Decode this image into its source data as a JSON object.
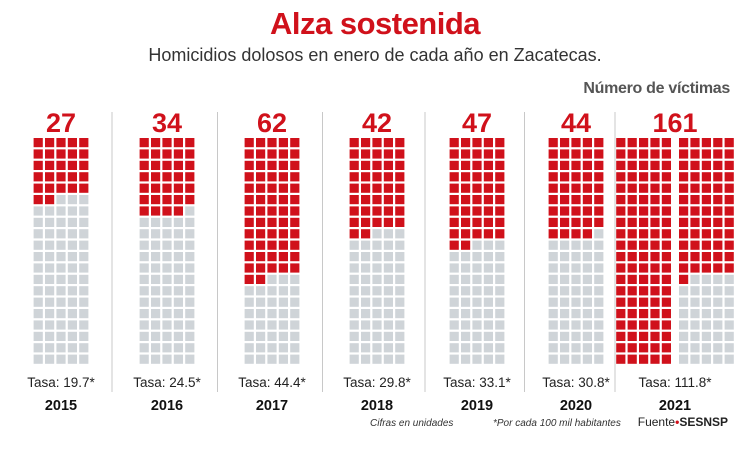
{
  "header": {
    "title": "Alza sostenida",
    "subtitle": "Homicidios dolosos en enero de cada año en Zacatecas.",
    "units_label": "Número de víctimas"
  },
  "chart_data": {
    "type": "waffle",
    "title": "Alza sostenida",
    "subtitle": "Homicidios dolosos en enero de cada año en Zacatecas.",
    "unit_label": "Número de víctimas",
    "grid": {
      "columns_per_block": 5,
      "rows_per_block": 20,
      "cells_per_block": 100
    },
    "colors": {
      "filled": "#d0111b",
      "empty": "#cfd4d8",
      "value": "#d0111b",
      "divider": "#c8c8c8"
    },
    "years": [
      {
        "year": "2015",
        "value": 27,
        "value_label": "27",
        "rate_label": "Tasa: 19.7*"
      },
      {
        "year": "2016",
        "value": 34,
        "value_label": "34",
        "rate_label": "Tasa: 24.5*"
      },
      {
        "year": "2017",
        "value": 62,
        "value_label": "62",
        "rate_label": "Tasa: 44.4*"
      },
      {
        "year": "2018",
        "value": 42,
        "value_label": "42",
        "rate_label": "Tasa: 29.8*"
      },
      {
        "year": "2019",
        "value": 47,
        "value_label": "47",
        "rate_label": "Tasa: 33.1*"
      },
      {
        "year": "2020",
        "value": 44,
        "value_label": "44",
        "rate_label": "Tasa: 30.8*"
      },
      {
        "year": "2021",
        "value": 161,
        "value_label": "161",
        "rate_label": "Tasa: 111.8*"
      }
    ]
  },
  "footer": {
    "note_units": "Cifras en unidades",
    "note_rate": "*Por cada 100 mil habitantes",
    "source_prefix": "Fuente",
    "source_dot": "•",
    "source_name": "SESNSP"
  }
}
